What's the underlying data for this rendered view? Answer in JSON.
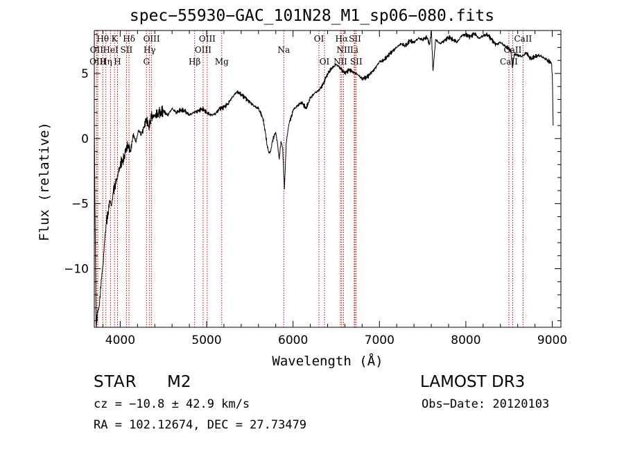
{
  "chart_data": {
    "type": "line",
    "title": "spec−55930−GAC_101N28_M1_sp06−080.fits",
    "xlabel": "Wavelength (Å)",
    "ylabel": "Flux (relative)",
    "xlim": [
      3700,
      9100
    ],
    "ylim": [
      -14.5,
      8.3
    ],
    "xticks": [
      4000,
      5000,
      6000,
      7000,
      8000,
      9000
    ],
    "yticks": [
      -10,
      -5,
      0,
      5
    ],
    "grid": false,
    "series": [
      {
        "x": [
          3700,
          3720,
          3740,
          3760,
          3780,
          3800,
          3820,
          3840,
          3860,
          3880,
          3900,
          3920,
          3940,
          3960,
          3980,
          4000,
          4030,
          4060,
          4090,
          4120,
          4150,
          4180,
          4210,
          4240,
          4270,
          4300,
          4330,
          4360,
          4400,
          4450,
          4500,
          4550,
          4600,
          4650,
          4700,
          4750,
          4800,
          4850,
          4900,
          4950,
          5000,
          5050,
          5100,
          5150,
          5200,
          5250,
          5300,
          5350,
          5400,
          5450,
          5500,
          5550,
          5600,
          5650,
          5680,
          5700,
          5720,
          5740,
          5760,
          5780,
          5800,
          5820,
          5840,
          5860,
          5880,
          5900,
          5910,
          5920,
          5940,
          5960,
          5980,
          6000,
          6050,
          6100,
          6150,
          6200,
          6250,
          6300,
          6350,
          6400,
          6450,
          6500,
          6550,
          6600,
          6650,
          6700,
          6750,
          6800,
          6850,
          6900,
          6950,
          7000,
          7050,
          7100,
          7150,
          7200,
          7250,
          7300,
          7350,
          7400,
          7450,
          7500,
          7550,
          7580,
          7600,
          7620,
          7650,
          7700,
          7750,
          7800,
          7850,
          7900,
          7950,
          8000,
          8050,
          8100,
          8150,
          8200,
          8250,
          8300,
          8350,
          8400,
          8450,
          8500,
          8520,
          8540,
          8560,
          8600,
          8650,
          8700,
          8750,
          8800,
          8850,
          8900,
          8950,
          8990,
          9000,
          9010
        ],
        "y": [
          1.0,
          -14.2,
          -13.4,
          -12.8,
          -10.8,
          -9.8,
          -7.8,
          -6.5,
          -5.6,
          -4.8,
          -5.2,
          -4.1,
          -3.5,
          -3.2,
          -2.6,
          -2.1,
          -1.6,
          -1.1,
          -0.5,
          -0.9,
          0.2,
          -0.2,
          0.6,
          0.3,
          0.8,
          1.4,
          1.0,
          1.6,
          1.8,
          1.9,
          2.1,
          1.8,
          2.3,
          2.0,
          2.2,
          2.1,
          1.8,
          2.0,
          2.1,
          2.3,
          2.0,
          1.8,
          1.9,
          2.3,
          2.4,
          2.7,
          3.2,
          3.6,
          3.4,
          3.1,
          2.8,
          2.5,
          2.3,
          1.6,
          0.4,
          -0.5,
          -1.1,
          -1.0,
          -0.3,
          0.2,
          0.5,
          -0.4,
          -1.6,
          -0.2,
          -0.7,
          -3.9,
          -2.4,
          -0.4,
          0.6,
          1.4,
          1.6,
          2.2,
          2.5,
          2.8,
          2.3,
          3.1,
          3.5,
          3.7,
          4.2,
          5.0,
          5.4,
          5.7,
          5.4,
          5.0,
          5.3,
          5.1,
          4.9,
          4.6,
          4.7,
          5.0,
          5.4,
          5.9,
          6.0,
          6.4,
          6.7,
          7.0,
          7.3,
          7.1,
          7.5,
          7.4,
          7.7,
          7.6,
          7.8,
          7.2,
          8.3,
          5.2,
          7.6,
          7.3,
          7.5,
          7.8,
          7.6,
          7.4,
          7.9,
          8.0,
          7.8,
          8.1,
          7.7,
          7.9,
          8.0,
          7.6,
          7.2,
          7.4,
          7.1,
          6.9,
          6.7,
          5.4,
          6.5,
          6.4,
          6.3,
          6.6,
          6.1,
          6.3,
          6.4,
          6.2,
          6.0,
          5.8,
          5.0,
          1.0
        ]
      }
    ],
    "line_markers": [
      {
        "label": "Hθ",
        "wavelength": 3798,
        "row": 0
      },
      {
        "label": "OII",
        "wavelength": 3727,
        "row": 1
      },
      {
        "label": "OIII",
        "wavelength": 3741,
        "row": 2
      },
      {
        "label": "K",
        "wavelength": 3934,
        "row": 0
      },
      {
        "label": "Hη",
        "wavelength": 3835,
        "row": 2
      },
      {
        "label": "HeI",
        "wavelength": 3889,
        "row": 1
      },
      {
        "label": "H",
        "wavelength": 3969,
        "row": 2
      },
      {
        "label": "Hδ",
        "wavelength": 4102,
        "row": 0
      },
      {
        "label": "SII",
        "wavelength": 4072,
        "row": 1
      },
      {
        "label": "OIII",
        "wavelength": 4363,
        "row": 0
      },
      {
        "label": "Hγ",
        "wavelength": 4340,
        "row": 1
      },
      {
        "label": "G",
        "wavelength": 4304,
        "row": 2
      },
      {
        "label": "OIII",
        "wavelength": 5007,
        "row": 0
      },
      {
        "label": "OIII",
        "wavelength": 4959,
        "row": 1
      },
      {
        "label": "Hβ",
        "wavelength": 4861,
        "row": 2
      },
      {
        "label": "Mg",
        "wavelength": 5175,
        "row": 2
      },
      {
        "label": "Na",
        "wavelength": 5893,
        "row": 1
      },
      {
        "label": "OI",
        "wavelength": 6300,
        "row": 0
      },
      {
        "label": "OI",
        "wavelength": 6364,
        "row": 2
      },
      {
        "label": "Hα",
        "wavelength": 6563,
        "row": 0
      },
      {
        "label": "SII",
        "wavelength": 6717,
        "row": 0
      },
      {
        "label": "NII",
        "wavelength": 6584,
        "row": 1
      },
      {
        "label": "Li",
        "wavelength": 6708,
        "row": 1
      },
      {
        "label": "NII",
        "wavelength": 6548,
        "row": 2
      },
      {
        "label": "SII",
        "wavelength": 6731,
        "row": 2
      },
      {
        "label": "CaII",
        "wavelength": 8662,
        "row": 0
      },
      {
        "label": "CaII",
        "wavelength": 8542,
        "row": 1
      },
      {
        "label": "CaII",
        "wavelength": 8498,
        "row": 2
      }
    ]
  },
  "info": {
    "object_class": "STAR",
    "subclass": "M2",
    "survey": "LAMOST DR3",
    "cz": "cz = −10.8 ± 42.9 km/s",
    "obs_date": "Obs−Date: 20120103",
    "coords": "RA = 102.12674, DEC =  27.73479"
  },
  "colors": {
    "spectrum": "#000000",
    "marker_line": "#cc0000",
    "axes": "#000000",
    "background": "#ffffff"
  }
}
